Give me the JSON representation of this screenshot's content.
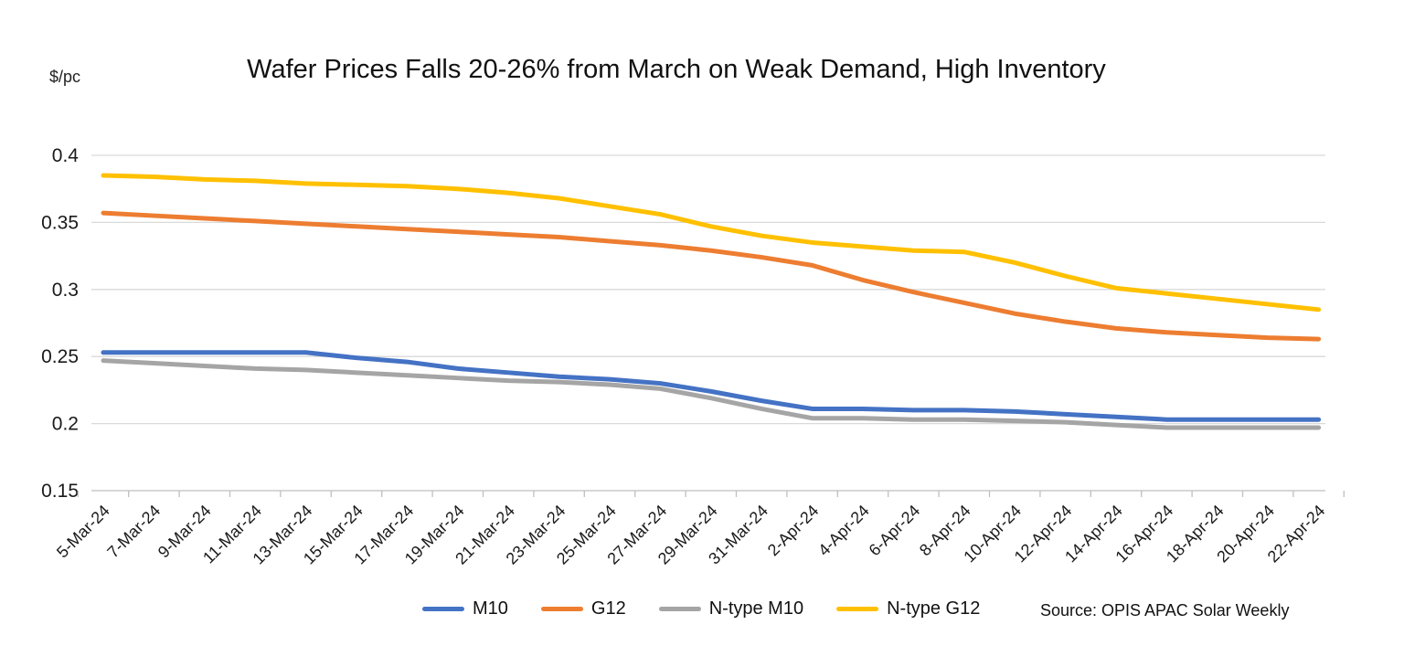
{
  "page": {
    "title": "Wafer Prices Falls 20-26% from March on Weak Demand, High Inventory",
    "y_unit_label": "$/pc",
    "source": "Source: OPIS APAC Solar Weekly"
  },
  "chart_data": {
    "type": "line",
    "title": "Wafer Prices Falls 20-26% from March on Weak Demand, High Inventory",
    "ylabel": "$/pc",
    "xlabel": "",
    "grid": true,
    "legend_position": "bottom",
    "ylim": [
      0.15,
      0.4
    ],
    "yticks": [
      0.4,
      0.35,
      0.3,
      0.25,
      0.2,
      0.15
    ],
    "x": [
      "5-Mar-24",
      "7-Mar-24",
      "9-Mar-24",
      "11-Mar-24",
      "13-Mar-24",
      "15-Mar-24",
      "17-Mar-24",
      "19-Mar-24",
      "21-Mar-24",
      "23-Mar-24",
      "25-Mar-24",
      "27-Mar-24",
      "29-Mar-24",
      "31-Mar-24",
      "2-Apr-24",
      "4-Apr-24",
      "6-Apr-24",
      "8-Apr-24",
      "10-Apr-24",
      "12-Apr-24",
      "14-Apr-24",
      "16-Apr-24",
      "18-Apr-24",
      "20-Apr-24",
      "22-Apr-24"
    ],
    "series": [
      {
        "name": "M10",
        "color": "#4472C4",
        "values": [
          0.253,
          0.253,
          0.253,
          0.253,
          0.253,
          0.249,
          0.246,
          0.241,
          0.238,
          0.235,
          0.233,
          0.23,
          0.224,
          0.217,
          0.211,
          0.211,
          0.21,
          0.21,
          0.209,
          0.207,
          0.205,
          0.203,
          0.203,
          0.203,
          0.203
        ]
      },
      {
        "name": "G12",
        "color": "#ED7D31",
        "values": [
          0.357,
          0.355,
          0.353,
          0.351,
          0.349,
          0.347,
          0.345,
          0.343,
          0.341,
          0.339,
          0.336,
          0.333,
          0.329,
          0.324,
          0.318,
          0.307,
          0.298,
          0.29,
          0.282,
          0.276,
          0.271,
          0.268,
          0.266,
          0.264,
          0.263
        ]
      },
      {
        "name": "N-type M10",
        "color": "#A5A5A5",
        "values": [
          0.247,
          0.245,
          0.243,
          0.241,
          0.24,
          0.238,
          0.236,
          0.234,
          0.232,
          0.231,
          0.229,
          0.226,
          0.219,
          0.211,
          0.204,
          0.204,
          0.203,
          0.203,
          0.202,
          0.201,
          0.199,
          0.197,
          0.197,
          0.197,
          0.197
        ]
      },
      {
        "name": "N-type G12",
        "color": "#FFC000",
        "values": [
          0.385,
          0.384,
          0.382,
          0.381,
          0.379,
          0.378,
          0.377,
          0.375,
          0.372,
          0.368,
          0.362,
          0.356,
          0.347,
          0.34,
          0.335,
          0.332,
          0.329,
          0.328,
          0.32,
          0.31,
          0.301,
          0.297,
          0.293,
          0.289,
          0.285
        ]
      }
    ]
  }
}
